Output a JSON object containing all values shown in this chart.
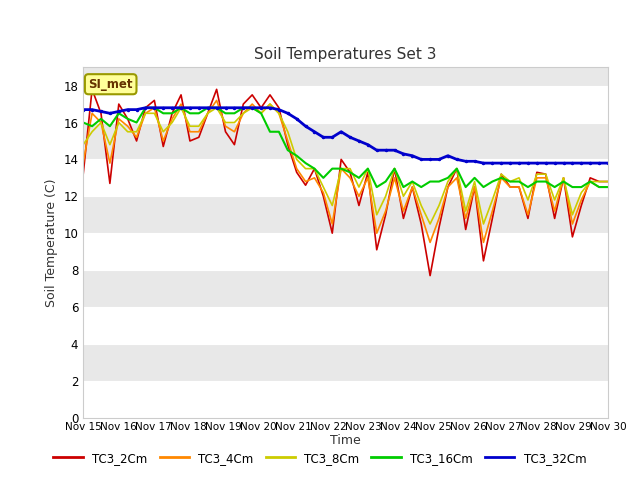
{
  "title": "Soil Temperatures Set 3",
  "xlabel": "Time",
  "ylabel": "Soil Temperature (C)",
  "ylim": [
    0,
    19
  ],
  "yticks": [
    0,
    2,
    4,
    6,
    8,
    10,
    12,
    14,
    16,
    18
  ],
  "background_color": "#ffffff",
  "plot_bg_color": "#e8e8e8",
  "annotation_text": "SI_met",
  "annotation_bg": "#ffff99",
  "annotation_border": "#999900",
  "series": {
    "TC3_2Cm": {
      "color": "#cc0000",
      "lw": 1.2,
      "values": [
        13.2,
        17.8,
        16.5,
        12.7,
        17.0,
        16.2,
        15.0,
        16.8,
        17.2,
        14.7,
        16.5,
        17.5,
        15.0,
        15.2,
        16.5,
        17.8,
        15.5,
        14.8,
        17.0,
        17.5,
        16.8,
        17.5,
        16.8,
        14.8,
        13.3,
        12.6,
        13.5,
        12.0,
        10.0,
        14.0,
        13.3,
        11.5,
        13.3,
        9.1,
        11.0,
        13.5,
        10.8,
        12.5,
        10.5,
        7.7,
        10.3,
        12.5,
        13.5,
        10.2,
        12.5,
        8.5,
        10.8,
        13.2,
        12.5,
        12.5,
        10.8,
        13.3,
        13.2,
        10.8,
        13.0,
        9.8,
        11.5,
        13.0,
        12.8,
        12.8
      ]
    },
    "TC3_4Cm": {
      "color": "#ff8800",
      "lw": 1.2,
      "values": [
        13.8,
        16.5,
        16.0,
        13.8,
        16.2,
        15.8,
        15.2,
        16.5,
        16.8,
        15.0,
        16.2,
        17.0,
        15.5,
        15.5,
        16.5,
        17.2,
        15.8,
        15.5,
        16.5,
        17.0,
        16.5,
        17.0,
        16.5,
        15.0,
        13.5,
        12.8,
        13.0,
        12.2,
        10.5,
        13.5,
        13.0,
        12.0,
        13.0,
        10.0,
        11.2,
        13.0,
        11.2,
        12.5,
        11.0,
        9.5,
        10.8,
        12.5,
        13.0,
        10.8,
        12.5,
        9.5,
        11.2,
        13.0,
        12.5,
        12.5,
        11.0,
        13.0,
        13.0,
        11.2,
        13.0,
        10.5,
        11.8,
        12.8,
        12.5,
        12.5
      ]
    },
    "TC3_8Cm": {
      "color": "#cccc00",
      "lw": 1.2,
      "values": [
        14.8,
        15.5,
        16.0,
        14.8,
        16.0,
        15.5,
        15.5,
        16.5,
        16.5,
        15.5,
        16.0,
        16.8,
        15.8,
        15.8,
        16.5,
        16.8,
        16.0,
        16.0,
        16.5,
        16.8,
        16.5,
        17.0,
        16.5,
        15.5,
        14.0,
        13.5,
        13.5,
        12.5,
        11.5,
        13.5,
        13.5,
        12.5,
        13.5,
        11.0,
        12.0,
        13.5,
        12.0,
        12.8,
        11.5,
        10.5,
        11.5,
        12.8,
        13.5,
        11.2,
        12.8,
        10.5,
        11.8,
        13.2,
        12.8,
        13.0,
        11.8,
        13.2,
        13.2,
        11.8,
        13.0,
        11.0,
        12.2,
        12.8,
        12.8,
        12.8
      ]
    },
    "TC3_16Cm": {
      "color": "#00cc00",
      "lw": 1.5,
      "values": [
        16.0,
        15.8,
        16.2,
        15.8,
        16.5,
        16.2,
        16.0,
        16.8,
        16.8,
        16.5,
        16.5,
        16.8,
        16.5,
        16.5,
        16.8,
        16.8,
        16.5,
        16.5,
        16.8,
        16.8,
        16.5,
        15.5,
        15.5,
        14.5,
        14.2,
        13.8,
        13.5,
        13.0,
        13.5,
        13.5,
        13.3,
        13.0,
        13.5,
        12.5,
        12.8,
        13.5,
        12.5,
        12.8,
        12.5,
        12.8,
        12.8,
        13.0,
        13.5,
        12.5,
        13.0,
        12.5,
        12.8,
        13.0,
        12.8,
        12.8,
        12.5,
        12.8,
        12.8,
        12.5,
        12.8,
        12.5,
        12.5,
        12.8,
        12.5,
        12.5
      ]
    },
    "TC3_32Cm": {
      "color": "#0000cc",
      "lw": 2.0,
      "marker": ".",
      "markersize": 3,
      "values": [
        16.7,
        16.7,
        16.6,
        16.5,
        16.6,
        16.7,
        16.7,
        16.8,
        16.8,
        16.8,
        16.8,
        16.8,
        16.8,
        16.8,
        16.8,
        16.8,
        16.8,
        16.8,
        16.8,
        16.8,
        16.8,
        16.8,
        16.7,
        16.5,
        16.2,
        15.8,
        15.5,
        15.2,
        15.2,
        15.5,
        15.2,
        15.0,
        14.8,
        14.5,
        14.5,
        14.5,
        14.3,
        14.2,
        14.0,
        14.0,
        14.0,
        14.2,
        14.0,
        13.9,
        13.9,
        13.8,
        13.8,
        13.8,
        13.8,
        13.8,
        13.8,
        13.8,
        13.8,
        13.8,
        13.8,
        13.8,
        13.8,
        13.8,
        13.8,
        13.8
      ]
    }
  },
  "n_points": 60,
  "xtick_labels": [
    "Nov 15",
    "Nov 16",
    "Nov 17",
    "Nov 18",
    "Nov 19",
    "Nov 20",
    "Nov 21",
    "Nov 22",
    "Nov 23",
    "Nov 24",
    "Nov 25",
    "Nov 26",
    "Nov 27",
    "Nov 28",
    "Nov 29",
    "Nov 30"
  ],
  "legend_entries": [
    "TC3_2Cm",
    "TC3_4Cm",
    "TC3_8Cm",
    "TC3_16Cm",
    "TC3_32Cm"
  ],
  "legend_colors": [
    "#cc0000",
    "#ff8800",
    "#cccc00",
    "#00cc00",
    "#0000cc"
  ]
}
